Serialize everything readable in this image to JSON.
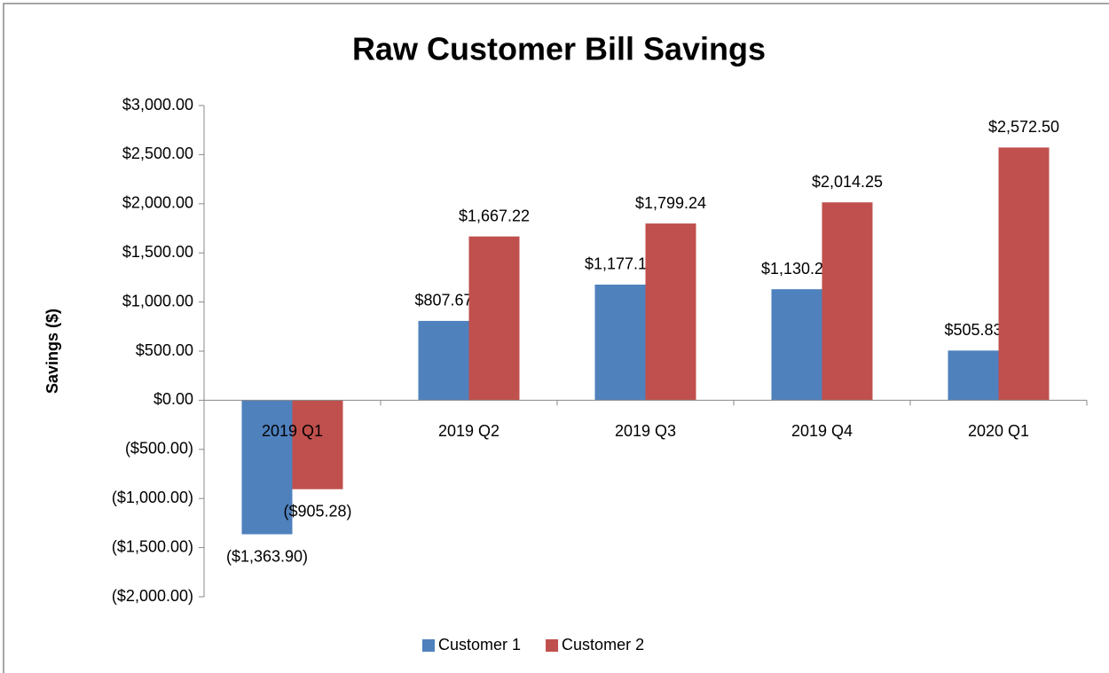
{
  "chart_data": {
    "type": "bar",
    "title": "Raw Customer Bill Savings",
    "y_label": "Savings ($)",
    "categories": [
      "2019 Q1",
      "2019 Q2",
      "2019 Q3",
      "2019 Q4",
      "2020 Q1"
    ],
    "series": [
      {
        "name": "Customer 1",
        "color": "#4f81bd",
        "values": [
          -1363.9,
          807.67,
          1177.1,
          1130.25,
          505.83
        ],
        "value_labels": [
          "($1,363.90)",
          "$807.67",
          "$1,177.10",
          "$1,130.25",
          "$505.83"
        ]
      },
      {
        "name": "Customer 2",
        "color": "#c0504d",
        "values": [
          -905.28,
          1667.22,
          1799.24,
          2014.25,
          2572.5
        ],
        "value_labels": [
          "($905.28)",
          "$1,667.22",
          "$1,799.24",
          "$2,014.25",
          "$2,572.50"
        ]
      }
    ],
    "ylim": [
      -2000,
      3000
    ],
    "yticks": [
      {
        "value": -2000,
        "label": "($2,000.00)"
      },
      {
        "value": -1500,
        "label": "($1,500.00)"
      },
      {
        "value": -1000,
        "label": "($1,000.00)"
      },
      {
        "value": -500,
        "label": "($500.00)"
      },
      {
        "value": 0,
        "label": "$0.00"
      },
      {
        "value": 500,
        "label": "$500.00"
      },
      {
        "value": 1000,
        "label": "$1,000.00"
      },
      {
        "value": 1500,
        "label": "$1,500.00"
      },
      {
        "value": 2000,
        "label": "$2,000.00"
      },
      {
        "value": 2500,
        "label": "$2,500.00"
      },
      {
        "value": 3000,
        "label": "$3,000.00"
      }
    ],
    "grid": false,
    "legend": "bottom"
  }
}
